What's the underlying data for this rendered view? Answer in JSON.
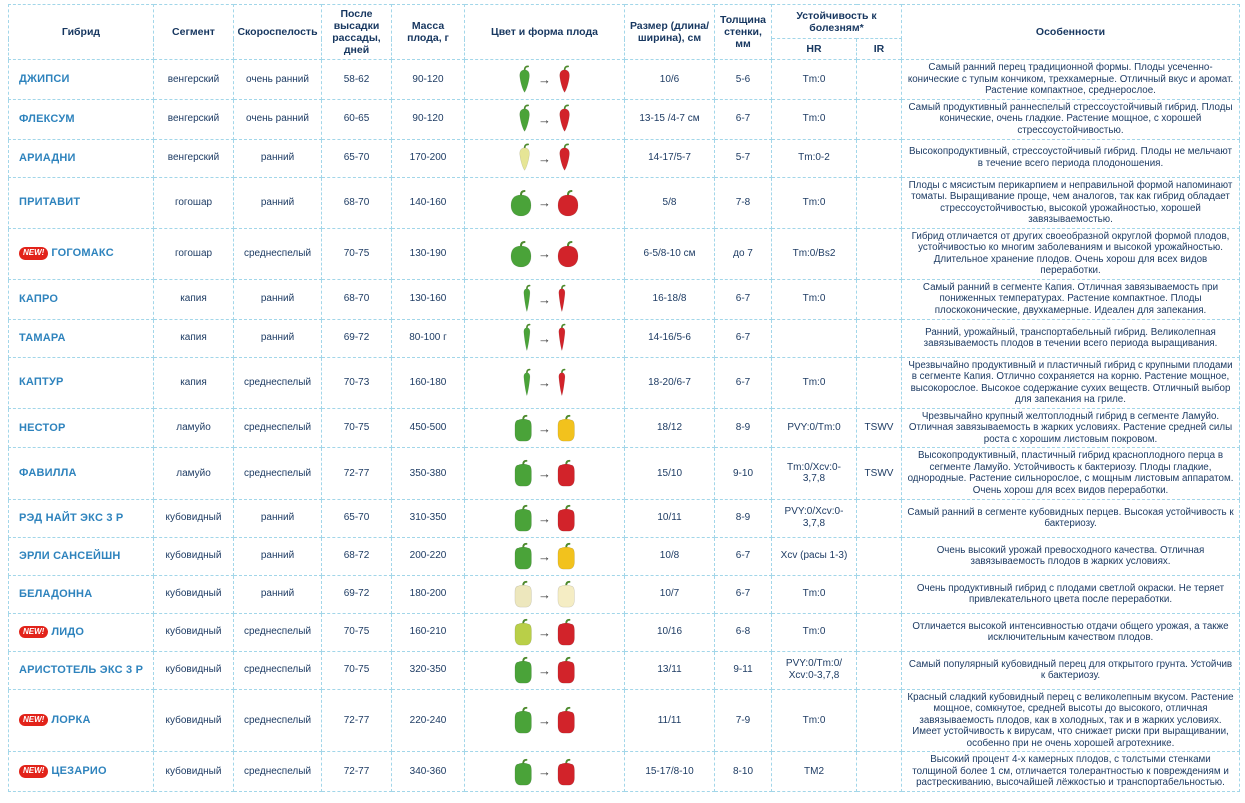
{
  "labels": {
    "new_badge": "NEW!"
  },
  "colors": {
    "border": "#a2d6e9",
    "header_text": "#16365f",
    "body_text": "#1e3c64",
    "hybrid_link": "#2e83bd",
    "new_badge_bg": "#e2231a"
  },
  "table": {
    "columns": {
      "hybrid": "Гибрид",
      "segment": "Сегмент",
      "ripening": "Скороспелость",
      "days": "После высадки рассады, дней",
      "mass": "Масса плода, г",
      "fruit": "Цвет и форма плода",
      "size": "Размер (длина/ ширина), см",
      "wall": "Толщина стенки, мм",
      "resistance": "Устойчивость к болезням*",
      "hr": "HR",
      "ir": "IR",
      "features": "Особенности"
    },
    "rows": [
      {
        "is_new": false,
        "hybrid": "ДЖИПСИ",
        "segment": "венгерский",
        "ripening": "очень ранний",
        "days": "58-62",
        "mass": "90-120",
        "fruit": {
          "shape": "conical",
          "unripe": "#4aa339",
          "ripe": "#d2232a"
        },
        "size": "10/6",
        "wall": "5-6",
        "hr": "Tm:0",
        "ir": "",
        "features": "Самый ранний перец традиционной формы. Плоды усеченно-конические с тупым кончиком, трехкамерные. Отличный вкус и аромат. Растение компактное, среднерослое."
      },
      {
        "is_new": false,
        "hybrid": "ФЛЕКСУМ",
        "segment": "венгерский",
        "ripening": "очень ранний",
        "days": "60-65",
        "mass": "90-120",
        "fruit": {
          "shape": "conical",
          "unripe": "#4aa339",
          "ripe": "#d2232a"
        },
        "size": "13-15 /4-7 см",
        "wall": "6-7",
        "hr": "Tm:0",
        "ir": "",
        "features": "Самый продуктивный раннеспелый стрессоустойчивый гибрид. Плоды конические, очень гладкие. Растение мощное, с хорошей стрессоустойчивостью."
      },
      {
        "is_new": false,
        "hybrid": "АРИАДНИ",
        "segment": "венгерский",
        "ripening": "ранний",
        "days": "65-70",
        "mass": "170-200",
        "fruit": {
          "shape": "conical",
          "unripe": "#e6e596",
          "ripe": "#d2232a"
        },
        "size": "14-17/5-7",
        "wall": "5-7",
        "hr": "Tm:0-2",
        "ir": "",
        "features": "Высокопродуктивный, стрессоустойчивый гибрид. Плоды не мельчают в течение всего периода плодоношения."
      },
      {
        "is_new": false,
        "hybrid": "ПРИТАВИТ",
        "segment": "гогошар",
        "ripening": "ранний",
        "days": "68-70",
        "mass": "140-160",
        "fruit": {
          "shape": "round",
          "unripe": "#4aa339",
          "ripe": "#d2232a"
        },
        "size": "5/8",
        "wall": "7-8",
        "hr": "Tm:0",
        "ir": "",
        "features": "Плоды с мясистым перикарпием и неправильной формой напоминают томаты. Выращивание проще, чем аналогов, так как гибрид обладает стрессоустойчивостью, высокой урожайностью, хорошей завязываемостью."
      },
      {
        "is_new": true,
        "hybrid": "ГОГОМАКС",
        "segment": "гогошар",
        "ripening": "среднеспелый",
        "days": "70-75",
        "mass": "130-190",
        "fruit": {
          "shape": "round",
          "unripe": "#4aa339",
          "ripe": "#d2232a"
        },
        "size": "6-5/8-10 см",
        "wall": "до 7",
        "hr": "Tm:0/Bs2",
        "ir": "",
        "features": "Гибрид отличается от других своеобразной округлой формой плодов, устойчивостью ко многим заболеваниям и высокой урожайностью. Длительное хранение плодов. Очень хорош для всех видов переработки."
      },
      {
        "is_new": false,
        "hybrid": "КАПРО",
        "segment": "капия",
        "ripening": "ранний",
        "days": "68-70",
        "mass": "130-160",
        "fruit": {
          "shape": "long",
          "unripe": "#4aa339",
          "ripe": "#d2232a"
        },
        "size": "16-18/8",
        "wall": "6-7",
        "hr": "Tm:0",
        "ir": "",
        "features": "Самый ранний в сегменте Капия. Отличная завязываемость при пониженных температурах. Растение компактное. Плоды плоскоконические, двухкамерные. Идеален для запекания."
      },
      {
        "is_new": false,
        "hybrid": "ТАМАРА",
        "segment": "капия",
        "ripening": "ранний",
        "days": "69-72",
        "mass": "80-100 г",
        "fruit": {
          "shape": "long",
          "unripe": "#4aa339",
          "ripe": "#d2232a"
        },
        "size": "14-16/5-6",
        "wall": "6-7",
        "hr": "",
        "ir": "",
        "features": "Ранний, урожайный, транспортабельный гибрид. Великолепная завязываемость плодов в течении всего периода выращивания."
      },
      {
        "is_new": false,
        "hybrid": "КАПТУР",
        "segment": "капия",
        "ripening": "среднеспелый",
        "days": "70-73",
        "mass": "160-180",
        "fruit": {
          "shape": "long",
          "unripe": "#4aa339",
          "ripe": "#d2232a"
        },
        "size": "18-20/6-7",
        "wall": "6-7",
        "hr": "Tm:0",
        "ir": "",
        "features": "Чрезвычайно продуктивный и пластичный гибрид с крупными плодами в сегменте Капия. Отлично сохраняется на корню. Растение мощное, высокорослое. Высокое содержание сухих веществ. Отличный выбор для запекания на гриле."
      },
      {
        "is_new": false,
        "hybrid": "НЕСТОР",
        "segment": "ламуйо",
        "ripening": "среднеспелый",
        "days": "70-75",
        "mass": "450-500",
        "fruit": {
          "shape": "blocky",
          "unripe": "#4aa339",
          "ripe": "#f2c21d"
        },
        "size": "18/12",
        "wall": "8-9",
        "hr": "PVY:0/Tm:0",
        "ir": "TSWV",
        "features": "Чрезвычайно крупный желтоплодный гибрид в сегменте Ламуйо. Отличная завязываемость в жарких условиях. Растение средней силы роста с хорошим листовым покровом."
      },
      {
        "is_new": false,
        "hybrid": "ФАВИЛЛА",
        "segment": "ламуйо",
        "ripening": "среднеспелый",
        "days": "72-77",
        "mass": "350-380",
        "fruit": {
          "shape": "blocky",
          "unripe": "#4aa339",
          "ripe": "#d2232a"
        },
        "size": "15/10",
        "wall": "9-10",
        "hr": "Tm:0/Xcv:0-3,7,8",
        "ir": "TSWV",
        "features": "Высокопродуктивный, пластичный гибрид красноплодного перца в сегменте Ламуйо. Устойчивость к бактериозу. Плоды гладкие, однородные. Растение сильнорослое, с мощным листовым аппаратом. Очень хорош для всех видов переработки."
      },
      {
        "is_new": false,
        "hybrid": "РЭД НАЙТ ЭКС 3 Р",
        "segment": "кубовидный",
        "ripening": "ранний",
        "days": "65-70",
        "mass": "310-350",
        "fruit": {
          "shape": "blocky",
          "unripe": "#4aa339",
          "ripe": "#d2232a"
        },
        "size": "10/11",
        "wall": "8-9",
        "hr": "PVY:0/Xcv:0-3,7,8",
        "ir": "",
        "features": "Самый ранний в сегменте кубовидных перцев. Высокая устойчивость к бактериозу."
      },
      {
        "is_new": false,
        "hybrid": "ЭРЛИ САНСЕЙШН",
        "segment": "кубовидный",
        "ripening": "ранний",
        "days": "68-72",
        "mass": "200-220",
        "fruit": {
          "shape": "blocky",
          "unripe": "#4aa339",
          "ripe": "#f2c21d"
        },
        "size": "10/8",
        "wall": "6-7",
        "hr": "Xcv (расы 1-3)",
        "ir": "",
        "features": "Очень высокий урожай превосходного качества. Отличная завязываемость плодов в жарких условиях."
      },
      {
        "is_new": false,
        "hybrid": "БЕЛАДОННА",
        "segment": "кубовидный",
        "ripening": "ранний",
        "days": "69-72",
        "mass": "180-200",
        "fruit": {
          "shape": "blocky",
          "unripe": "#ede7bd",
          "ripe": "#f5edc4"
        },
        "size": "10/7",
        "wall": "6-7",
        "hr": "Tm:0",
        "ir": "",
        "features": "Очень продуктивный гибрид с плодами светлой окраски. Не теряет привлекательного цвета после переработки."
      },
      {
        "is_new": true,
        "hybrid": "ЛИДО",
        "segment": "кубовидный",
        "ripening": "среднеспелый",
        "days": "70-75",
        "mass": "160-210",
        "fruit": {
          "shape": "blocky",
          "unripe": "#b9cf48",
          "ripe": "#d2232a"
        },
        "size": "10/16",
        "wall": "6-8",
        "hr": "Tm:0",
        "ir": "",
        "features": "Отличается высокой интенсивностью отдачи общего урожая, а также исключительным качеством плодов."
      },
      {
        "is_new": false,
        "hybrid": "АРИСТОТЕЛЬ ЭКС 3 Р",
        "segment": "кубовидный",
        "ripening": "среднеспелый",
        "days": "70-75",
        "mass": "320-350",
        "fruit": {
          "shape": "blocky",
          "unripe": "#4aa339",
          "ripe": "#d2232a"
        },
        "size": "13/11",
        "wall": "9-11",
        "hr": "PVY:0/Tm:0/ Xcv:0-3,7,8",
        "ir": "",
        "features": "Самый популярный кубовидный перец для открытого грунта. Устойчив к бактериозу."
      },
      {
        "is_new": true,
        "hybrid": "ЛОРКА",
        "segment": "кубовидный",
        "ripening": "среднеспелый",
        "days": "72-77",
        "mass": "220-240",
        "fruit": {
          "shape": "blocky",
          "unripe": "#4aa339",
          "ripe": "#d2232a"
        },
        "size": "11/11",
        "wall": "7-9",
        "hr": "Tm:0",
        "ir": "",
        "features": "Красный сладкий кубовидный перец с великолепным вкусом. Растение мощное, сомкнутое, средней высоты до высокого, отличная завязываемость плодов, как в холодных, так и в жарких условиях. Имеет устойчивость к вирусам, что снижает риски при выращивании, особенно при не очень хорошей агротехнике."
      },
      {
        "is_new": true,
        "hybrid": "ЦЕЗАРИО",
        "segment": "кубовидный",
        "ripening": "среднеспелый",
        "days": "72-77",
        "mass": "340-360",
        "fruit": {
          "shape": "blocky",
          "unripe": "#4aa339",
          "ripe": "#d2232a"
        },
        "size": "15-17/8-10",
        "wall": "8-10",
        "hr": "TM2",
        "ir": "",
        "features": "Высокий процент 4-х камерных плодов, с толстыми стенками толщиной более 1 см, отличается толерантностью к повреждениям и растрескиванию, высочайшей лёжкостью и транспортабельностью."
      }
    ]
  }
}
